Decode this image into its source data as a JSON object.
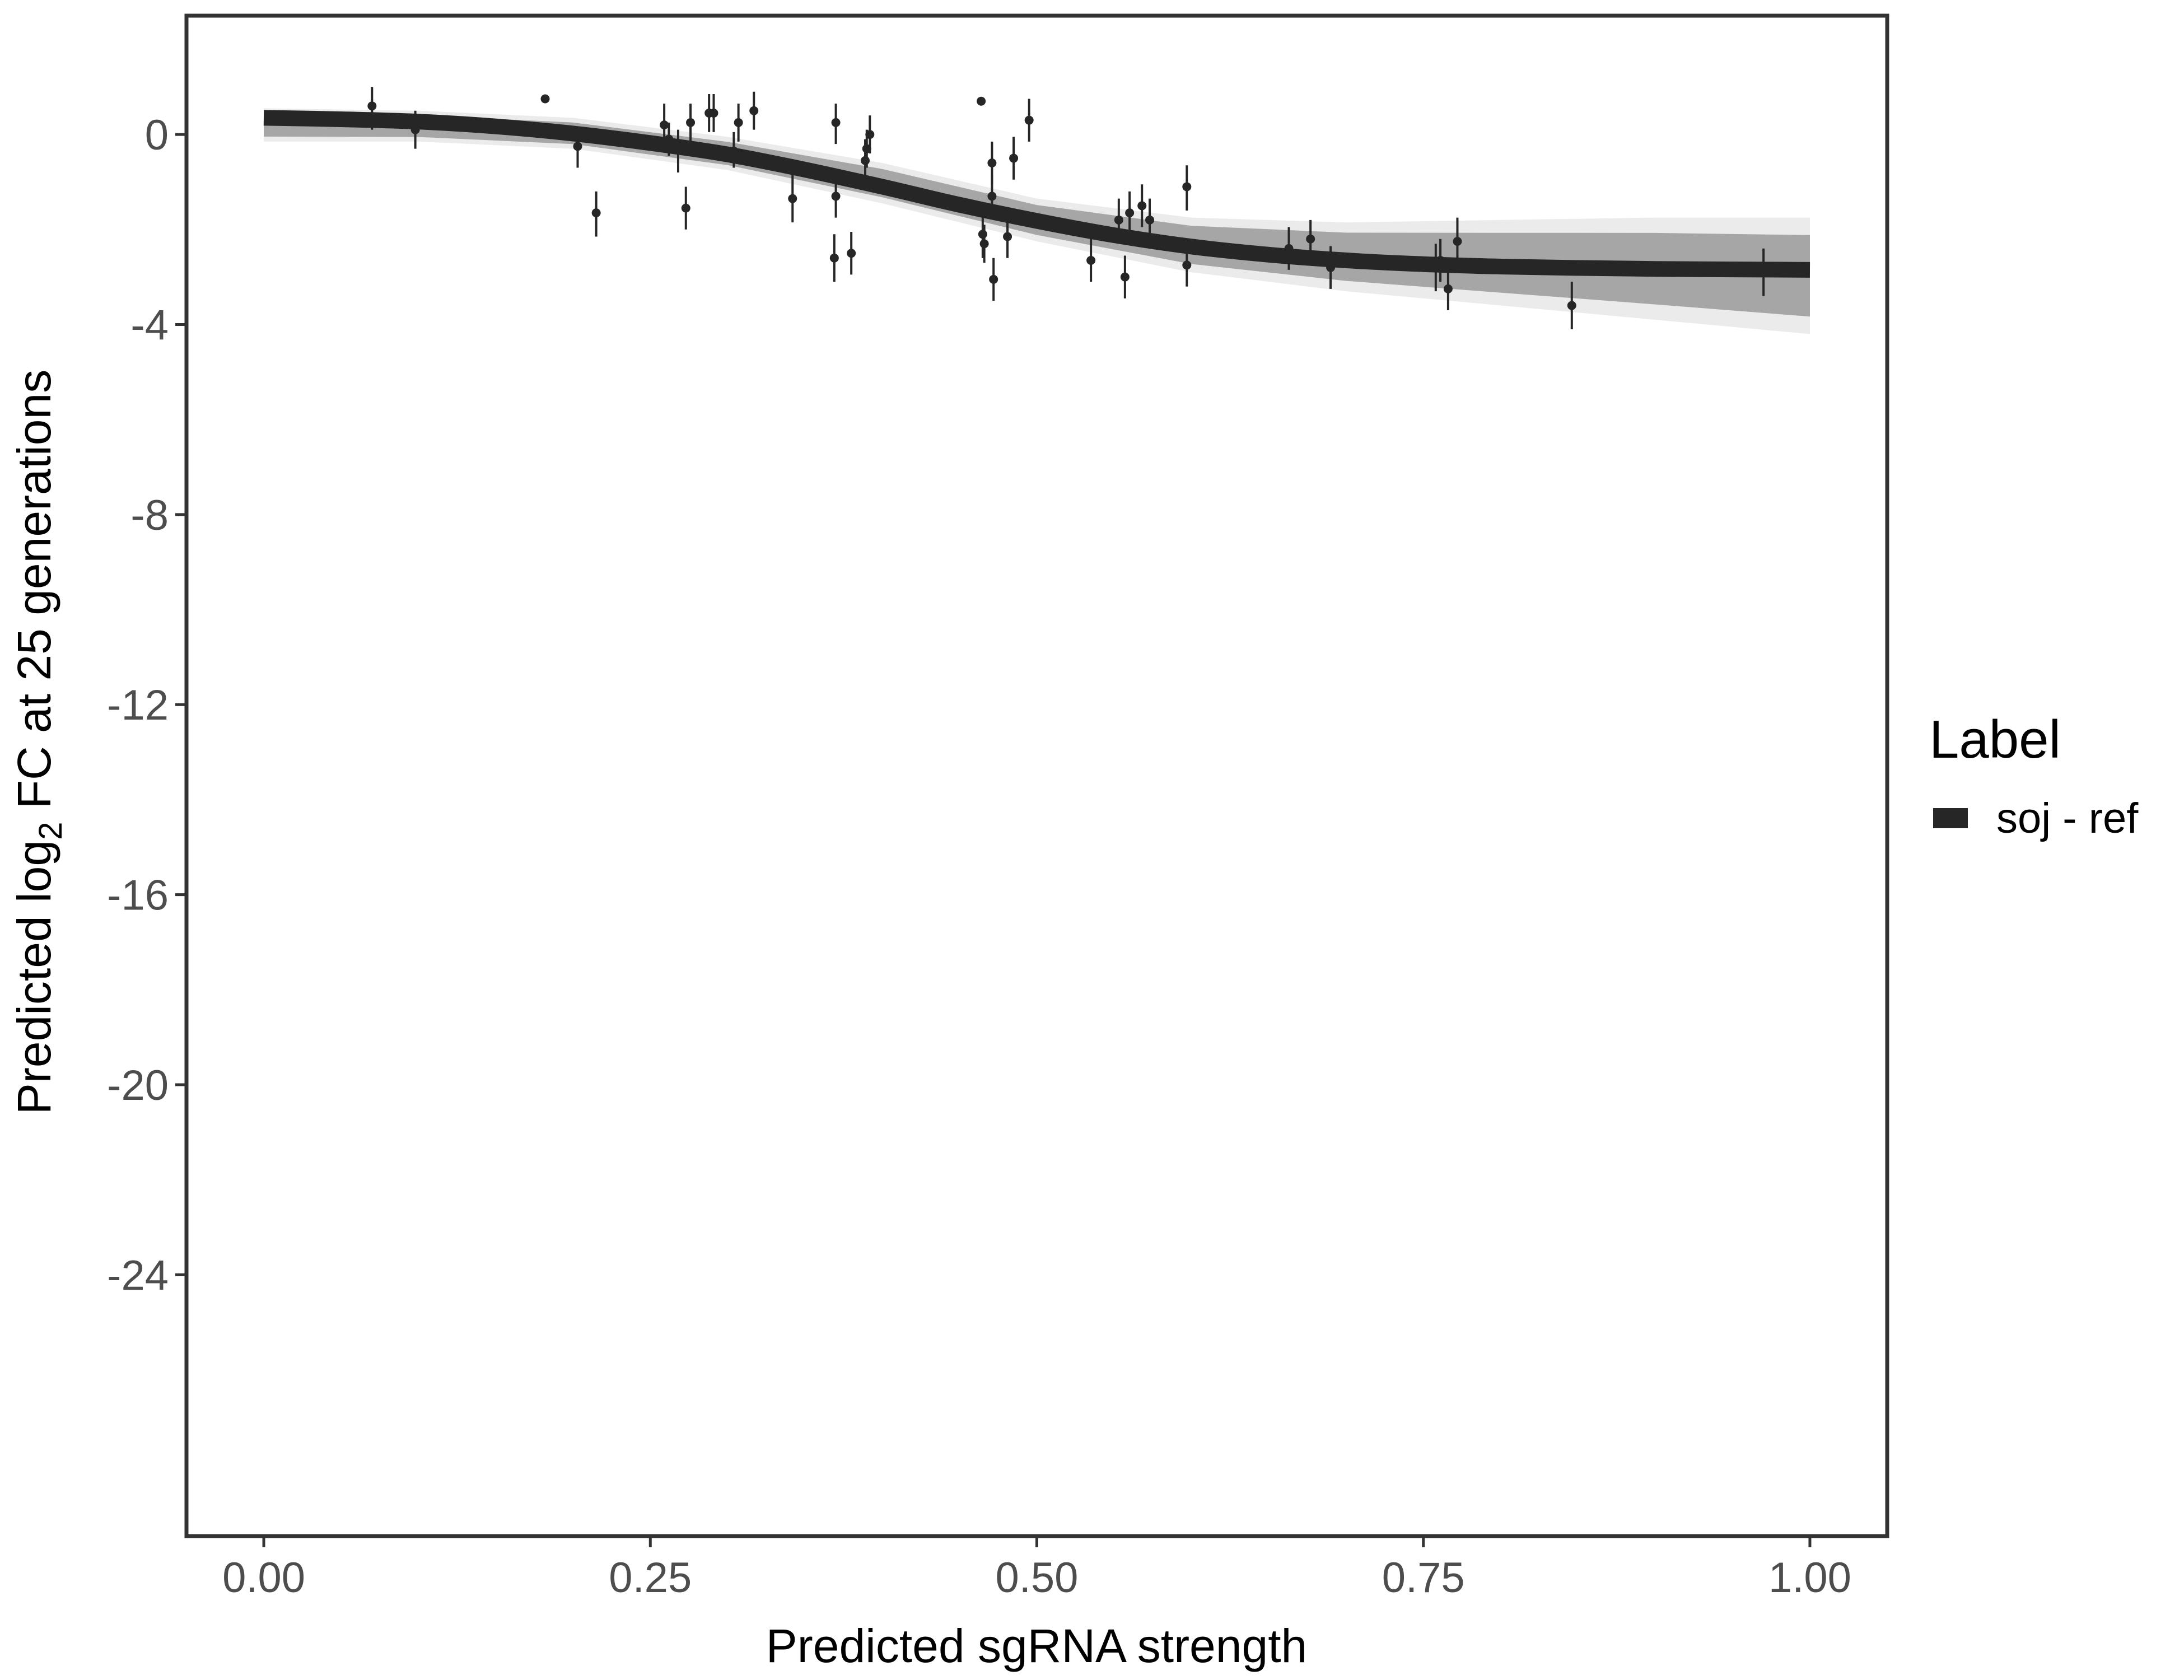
{
  "chart_data": {
    "type": "line",
    "xlabel": "Predicted sgRNA strength",
    "ylabel_parts": {
      "before": "Predicted  log",
      "sub": "2",
      "after": " FC at 25 generations"
    },
    "xlim": [
      -0.05,
      1.05
    ],
    "ylim": [
      -29.5,
      2.5
    ],
    "x_ticks": [
      0,
      0.25,
      0.5,
      0.75,
      1
    ],
    "x_tick_labels": [
      "0.00",
      "0.25",
      "0.50",
      "0.75",
      "1.00"
    ],
    "y_ticks": [
      0,
      -4,
      -8,
      -12,
      -16,
      -20,
      -24
    ],
    "y_tick_labels": [
      "0",
      "-4",
      "-8",
      "-12",
      "-16",
      "-20",
      "-24"
    ],
    "grid": false,
    "legend": {
      "title": "Label",
      "position": "right",
      "entries": [
        "soj - ref"
      ]
    },
    "colors": {
      "fit": "#262626",
      "band": "#9e9e9e",
      "points": "#262626",
      "frame": "#333333"
    },
    "fit_curve": {
      "name": "soj - ref",
      "x": [
        0.0,
        0.05,
        0.1,
        0.15,
        0.2,
        0.25,
        0.3,
        0.35,
        0.4,
        0.45,
        0.5,
        0.55,
        0.6,
        0.65,
        0.7,
        0.75,
        0.8,
        0.85,
        0.9,
        0.95,
        1.0
      ],
      "y": [
        0.35,
        0.32,
        0.27,
        0.17,
        0.02,
        -0.18,
        -0.42,
        -0.74,
        -1.1,
        -1.48,
        -1.82,
        -2.12,
        -2.36,
        -2.53,
        -2.65,
        -2.73,
        -2.78,
        -2.81,
        -2.83,
        -2.84,
        -2.85
      ]
    },
    "uncertainty_band": {
      "x": [
        0.0,
        0.1,
        0.2,
        0.3,
        0.4,
        0.5,
        0.6,
        0.7,
        0.8,
        0.9,
        1.0
      ],
      "lower": [
        -0.15,
        -0.15,
        -0.3,
        -0.75,
        -1.45,
        -2.25,
        -2.9,
        -3.3,
        -3.6,
        -3.9,
        -4.2
      ],
      "upper": [
        0.55,
        0.5,
        0.35,
        -0.05,
        -0.6,
        -1.35,
        -1.75,
        -1.85,
        -1.8,
        -1.75,
        -1.75
      ]
    },
    "points": [
      {
        "x": 0.07,
        "y": 0.6,
        "lo": 0.1,
        "hi": 1.0
      },
      {
        "x": 0.098,
        "y": 0.1,
        "lo": -0.3,
        "hi": 0.5
      },
      {
        "x": 0.182,
        "y": 0.75,
        "lo": 0.75,
        "hi": 0.75
      },
      {
        "x": 0.203,
        "y": -0.25,
        "lo": -0.7,
        "hi": 0.15
      },
      {
        "x": 0.215,
        "y": -1.65,
        "lo": -2.15,
        "hi": -1.2
      },
      {
        "x": 0.259,
        "y": 0.2,
        "lo": -0.2,
        "hi": 0.65
      },
      {
        "x": 0.262,
        "y": -0.1,
        "lo": -0.45,
        "hi": 0.25
      },
      {
        "x": 0.268,
        "y": -0.3,
        "lo": -0.8,
        "hi": 0.1
      },
      {
        "x": 0.273,
        "y": -1.55,
        "lo": -2.0,
        "hi": -1.1
      },
      {
        "x": 0.276,
        "y": 0.25,
        "lo": -0.2,
        "hi": 0.65
      },
      {
        "x": 0.288,
        "y": 0.45,
        "lo": 0.05,
        "hi": 0.85
      },
      {
        "x": 0.291,
        "y": 0.45,
        "lo": 0.05,
        "hi": 0.85
      },
      {
        "x": 0.304,
        "y": -0.35,
        "lo": -0.7,
        "hi": 0.05
      },
      {
        "x": 0.307,
        "y": 0.25,
        "lo": -0.15,
        "hi": 0.65
      },
      {
        "x": 0.317,
        "y": 0.5,
        "lo": 0.1,
        "hi": 0.9
      },
      {
        "x": 0.342,
        "y": -1.35,
        "lo": -1.85,
        "hi": -0.85
      },
      {
        "x": 0.369,
        "y": -2.6,
        "lo": -3.1,
        "hi": -2.1
      },
      {
        "x": 0.37,
        "y": 0.25,
        "lo": -0.2,
        "hi": 0.65
      },
      {
        "x": 0.37,
        "y": -1.3,
        "lo": -1.75,
        "hi": -0.85
      },
      {
        "x": 0.38,
        "y": -2.5,
        "lo": -2.95,
        "hi": -2.05
      },
      {
        "x": 0.389,
        "y": -0.55,
        "lo": -1.05,
        "hi": -0.1
      },
      {
        "x": 0.39,
        "y": -0.3,
        "lo": -0.7,
        "hi": 0.1
      },
      {
        "x": 0.392,
        "y": 0.0,
        "lo": -0.4,
        "hi": 0.4
      },
      {
        "x": 0.464,
        "y": 0.7,
        "lo": 0.7,
        "hi": 0.7
      },
      {
        "x": 0.465,
        "y": -2.1,
        "lo": -2.6,
        "hi": -1.6
      },
      {
        "x": 0.466,
        "y": -2.3,
        "lo": -2.7,
        "hi": -1.9
      },
      {
        "x": 0.471,
        "y": -0.6,
        "lo": -1.05,
        "hi": -0.15
      },
      {
        "x": 0.471,
        "y": -1.3,
        "lo": -1.75,
        "hi": -0.85
      },
      {
        "x": 0.472,
        "y": -3.05,
        "lo": -3.5,
        "hi": -2.6
      },
      {
        "x": 0.481,
        "y": -2.15,
        "lo": -2.6,
        "hi": -1.7
      },
      {
        "x": 0.485,
        "y": -0.5,
        "lo": -0.95,
        "hi": -0.05
      },
      {
        "x": 0.495,
        "y": 0.3,
        "lo": -0.15,
        "hi": 0.75
      },
      {
        "x": 0.535,
        "y": -2.65,
        "lo": -3.1,
        "hi": -2.2
      },
      {
        "x": 0.553,
        "y": -1.8,
        "lo": -2.25,
        "hi": -1.35
      },
      {
        "x": 0.557,
        "y": -3.0,
        "lo": -3.45,
        "hi": -2.55
      },
      {
        "x": 0.56,
        "y": -1.65,
        "lo": -2.1,
        "hi": -1.2
      },
      {
        "x": 0.568,
        "y": -1.5,
        "lo": -1.95,
        "hi": -1.05
      },
      {
        "x": 0.573,
        "y": -1.8,
        "lo": -2.25,
        "hi": -1.35
      },
      {
        "x": 0.597,
        "y": -1.1,
        "lo": -1.6,
        "hi": -0.65
      },
      {
        "x": 0.597,
        "y": -2.75,
        "lo": -3.2,
        "hi": -2.3
      },
      {
        "x": 0.663,
        "y": -2.4,
        "lo": -2.85,
        "hi": -1.95
      },
      {
        "x": 0.677,
        "y": -2.2,
        "lo": -2.6,
        "hi": -1.8
      },
      {
        "x": 0.69,
        "y": -2.8,
        "lo": -3.25,
        "hi": -2.35
      },
      {
        "x": 0.758,
        "y": -2.8,
        "lo": -3.3,
        "hi": -2.3
      },
      {
        "x": 0.761,
        "y": -2.65,
        "lo": -3.1,
        "hi": -2.2
      },
      {
        "x": 0.766,
        "y": -3.25,
        "lo": -3.7,
        "hi": -2.8
      },
      {
        "x": 0.772,
        "y": -2.25,
        "lo": -2.7,
        "hi": -1.75
      },
      {
        "x": 0.846,
        "y": -3.6,
        "lo": -4.1,
        "hi": -3.1
      },
      {
        "x": 0.97,
        "y": -2.9,
        "lo": -3.4,
        "hi": -2.4
      }
    ]
  }
}
